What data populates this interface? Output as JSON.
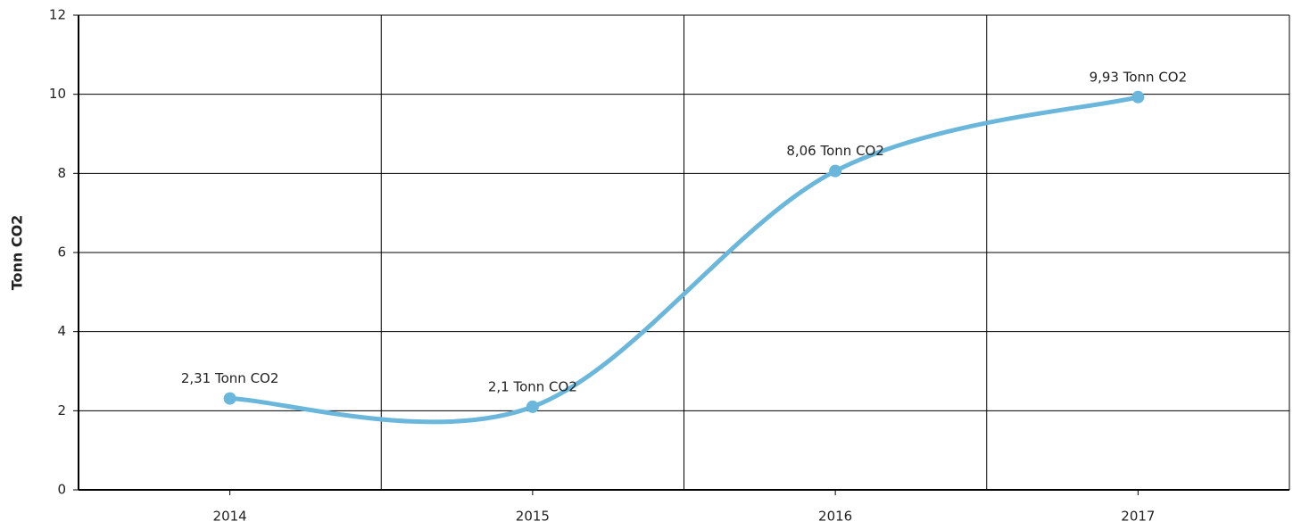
{
  "chart_data": {
    "type": "line",
    "y_label": "Tonn CO2",
    "categories": [
      "2014",
      "2015",
      "2016",
      "2017"
    ],
    "series": [
      {
        "name": "Tonn CO2",
        "color": "#6bb7dc",
        "values": [
          2.31,
          2.1,
          8.06,
          9.93
        ],
        "value_labels": [
          "2,31 Tonn CO2",
          "2,1 Tonn CO2",
          "8,06 Tonn CO2",
          "9,93 Tonn CO2"
        ]
      }
    ],
    "ylim": [
      0,
      12
    ],
    "yticks": [
      0,
      2,
      4,
      6,
      8,
      10,
      12
    ],
    "grid": true
  }
}
